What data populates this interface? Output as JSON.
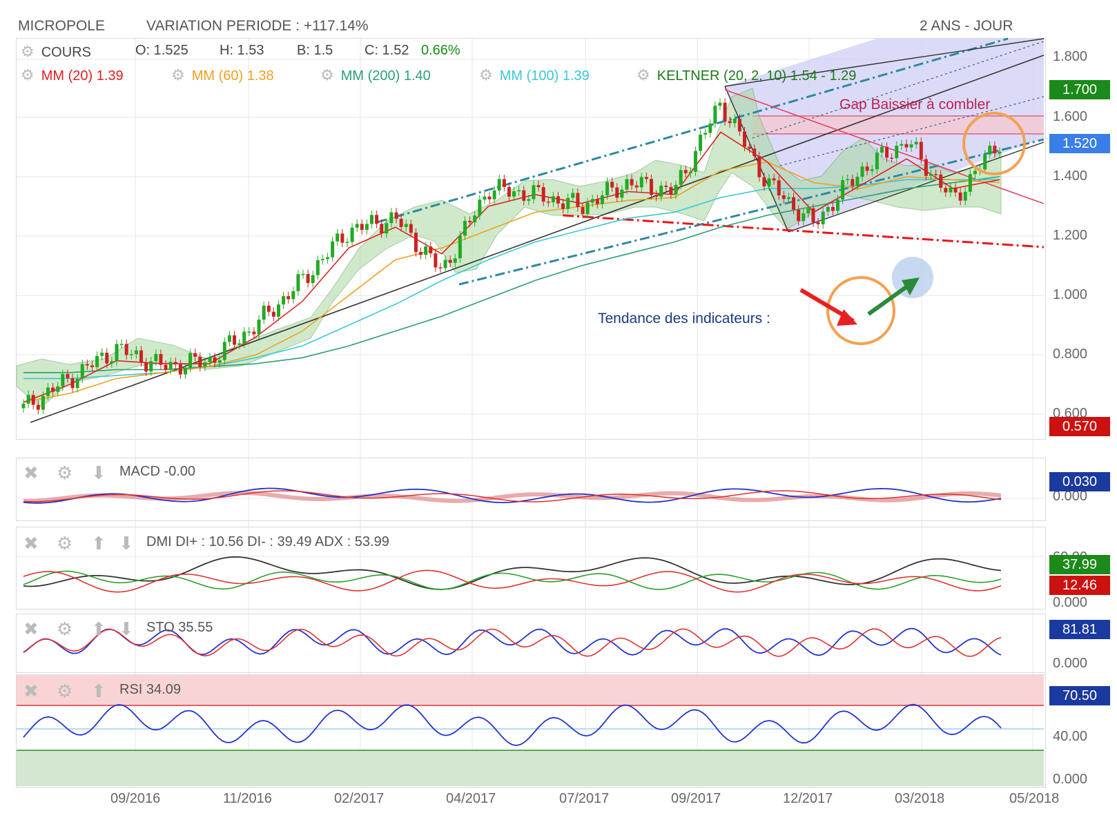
{
  "header": {
    "title": "MICROPOLE",
    "variation": "VARIATION PERIODE : +117.14%",
    "period": "2 ANS - JOUR"
  },
  "legend": {
    "cours_label": "COURS",
    "o": "O: 1.525",
    "h": "H: 1.53",
    "b": "B: 1.5",
    "c": "C: 1.52",
    "c_pct": "0.66%",
    "mm20": "MM (20)  1.39",
    "mm60": "MM (60)  1.38",
    "mm200": "MM (200)  1.40",
    "mm100": "MM (100)  1.39",
    "keltner": "KELTNER (20, 2, 10)  1.54 - 1.29"
  },
  "colors": {
    "mm20": "#e02020",
    "mm60": "#f0a020",
    "mm200": "#2aa070",
    "mm100": "#38c8d8",
    "keltner": "#2a8a2a",
    "up_tag": "#1a8a1a",
    "down_tag": "#cc1111",
    "blue_tag": "#1a3aa0",
    "price_tag": "#3a7ee8",
    "channel_fill": "#cfcff5"
  },
  "annotations": {
    "gap": "Gap Baissier à combler",
    "trend": "Tendance des indicateurs :"
  },
  "price_axis": {
    "ticks": [
      "1.800",
      "1.600",
      "1.400",
      "1.200",
      "1.000",
      "0.800",
      "0.600"
    ],
    "tag_high": "1.700",
    "tag_last": "1.520",
    "tag_low": "0.570"
  },
  "panels": {
    "macd": {
      "title": "MACD  -0.00",
      "tag": "0.030",
      "tick": "0.000"
    },
    "dmi": {
      "title": "DMI  DI+ : 10.56 DI- : 39.49 ADX : 53.99",
      "tag_top": "37.99",
      "tag_bottom": "12.46",
      "tick_top": "60.00",
      "tick_bottom": "0.000"
    },
    "sto": {
      "title": "STO  35.55",
      "tag": "81.81",
      "tick": "0.000"
    },
    "rsi": {
      "title": "RSI  34.09",
      "tag": "70.50",
      "tick_mid": "40.00",
      "tick_bottom": "0.000"
    }
  },
  "x_axis": {
    "labels": [
      "09/2016",
      "11/2016",
      "02/2017",
      "04/2017",
      "07/2017",
      "09/2017",
      "12/2017",
      "03/2018",
      "05/2018"
    ]
  },
  "chart_data": {
    "type": "line",
    "title": "MICROPOLE",
    "x": [
      "2016-07",
      "2016-08",
      "2016-09",
      "2016-10",
      "2016-11",
      "2016-12",
      "2017-01",
      "2017-02",
      "2017-03",
      "2017-04",
      "2017-05",
      "2017-06",
      "2017-07",
      "2017-08",
      "2017-09",
      "2017-10",
      "2017-11",
      "2017-12",
      "2018-01",
      "2018-02",
      "2018-03",
      "2018-04"
    ],
    "series": [
      {
        "name": "COURS",
        "values": [
          0.62,
          0.72,
          0.82,
          0.76,
          0.78,
          0.9,
          1.05,
          1.22,
          1.26,
          1.08,
          1.36,
          1.34,
          1.3,
          1.38,
          1.35,
          1.65,
          1.38,
          1.24,
          1.42,
          1.52,
          1.32,
          1.52
        ]
      },
      {
        "name": "MM (20)",
        "values": [
          0.64,
          0.7,
          0.78,
          0.77,
          0.77,
          0.86,
          0.98,
          1.16,
          1.23,
          1.14,
          1.3,
          1.34,
          1.31,
          1.35,
          1.34,
          1.55,
          1.45,
          1.28,
          1.37,
          1.46,
          1.36,
          1.39
        ]
      },
      {
        "name": "MM (60)",
        "values": [
          0.64,
          0.67,
          0.72,
          0.74,
          0.76,
          0.8,
          0.88,
          1.0,
          1.12,
          1.16,
          1.22,
          1.28,
          1.3,
          1.32,
          1.33,
          1.42,
          1.45,
          1.38,
          1.36,
          1.4,
          1.39,
          1.38
        ]
      },
      {
        "name": "MM (100)",
        "values": [
          0.72,
          0.72,
          0.73,
          0.74,
          0.76,
          0.79,
          0.83,
          0.9,
          0.97,
          1.05,
          1.12,
          1.18,
          1.22,
          1.26,
          1.28,
          1.33,
          1.36,
          1.36,
          1.37,
          1.39,
          1.39,
          1.39
        ]
      },
      {
        "name": "MM (200)",
        "values": [
          0.74,
          0.74,
          0.75,
          0.75,
          0.76,
          0.77,
          0.79,
          0.83,
          0.88,
          0.93,
          0.99,
          1.05,
          1.1,
          1.14,
          1.18,
          1.23,
          1.27,
          1.3,
          1.33,
          1.36,
          1.38,
          1.4
        ]
      }
    ],
    "ylim": [
      0.5,
      1.85
    ],
    "grid": true
  }
}
